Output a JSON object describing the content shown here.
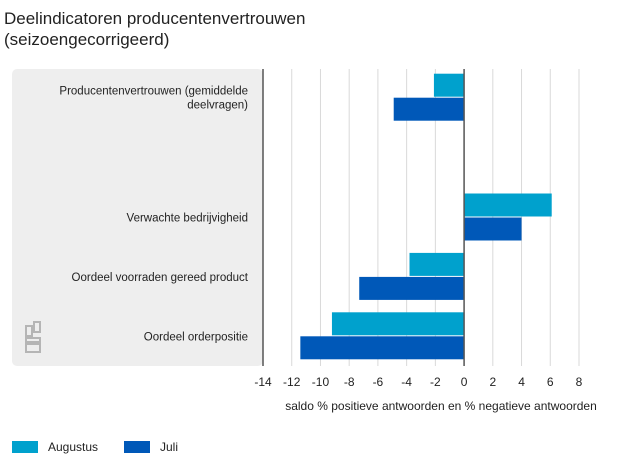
{
  "chart_data": {
    "type": "bar",
    "orientation": "horizontal",
    "title": "Deelindicatoren producentenvertrouwen (seizoengecorrigeerd)",
    "title_lines": [
      "Deelindicatoren producentenvertrouwen",
      "(seizoengecorrigeerd)"
    ],
    "xlabel": "saldo % positieve antwoorden en % negatieve antwoorden",
    "ylabel": "",
    "xlim": [
      -14,
      8
    ],
    "xticks": [
      -14,
      -12,
      -10,
      -8,
      -6,
      -4,
      -2,
      0,
      2,
      4,
      6,
      8
    ],
    "grid": true,
    "legend_position": "bottom-left",
    "categories": [
      [
        "Producentenvertrouwen (gemiddelde",
        "deelvragen)"
      ],
      [],
      [
        "Verwachte bedrijvigheid"
      ],
      [
        "Oordeel voorraden gereed product"
      ],
      [
        "Oordeel orderpositie"
      ]
    ],
    "series": [
      {
        "name": "Augustus",
        "color": "#00a1cd",
        "values": [
          -2.1,
          null,
          6.1,
          -3.8,
          -9.2
        ]
      },
      {
        "name": "Juli",
        "color": "#0058b8",
        "values": [
          -4.9,
          null,
          4.0,
          -7.3,
          -11.4
        ]
      }
    ]
  },
  "logo": "cbs"
}
